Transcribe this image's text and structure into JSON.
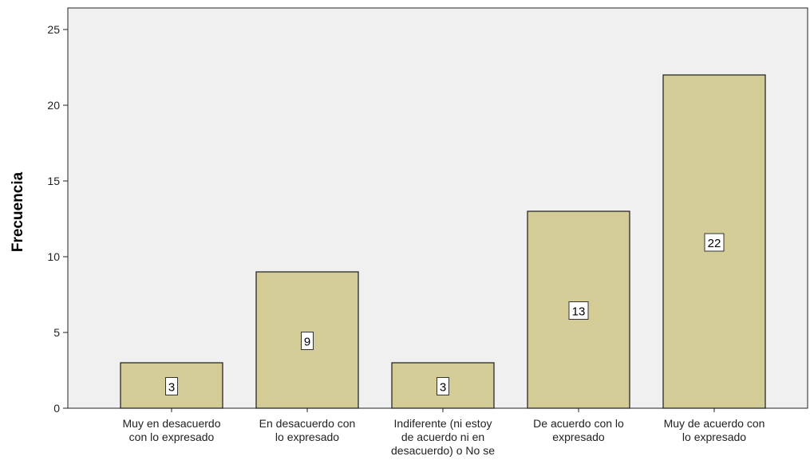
{
  "chart_data": {
    "type": "bar",
    "ylabel": "Frecuencia",
    "xlabel": "",
    "ylim": [
      0,
      26
    ],
    "yticks": [
      0,
      5,
      10,
      15,
      20,
      25
    ],
    "grid": false,
    "legend": "none",
    "categories": [
      [
        "Muy en desacuerdo",
        "con lo expresado"
      ],
      [
        "En desacuerdo con",
        "lo expresado"
      ],
      [
        "Indiferente (ni estoy",
        "de acuerdo ni en",
        "desacuerdo) o No se"
      ],
      [
        "De acuerdo con lo",
        "expresado"
      ],
      [
        "Muy de acuerdo con",
        "lo expresado"
      ]
    ],
    "values": [
      3,
      9,
      3,
      13,
      22
    ],
    "data_labels": [
      "3",
      "9",
      "3",
      "13",
      "22"
    ],
    "colors": {
      "bar_fill": "#d4cc97",
      "bar_stroke": "#1a1a1a",
      "plot_bg": "#f0f0f0",
      "label_box": "#ffffff"
    }
  }
}
